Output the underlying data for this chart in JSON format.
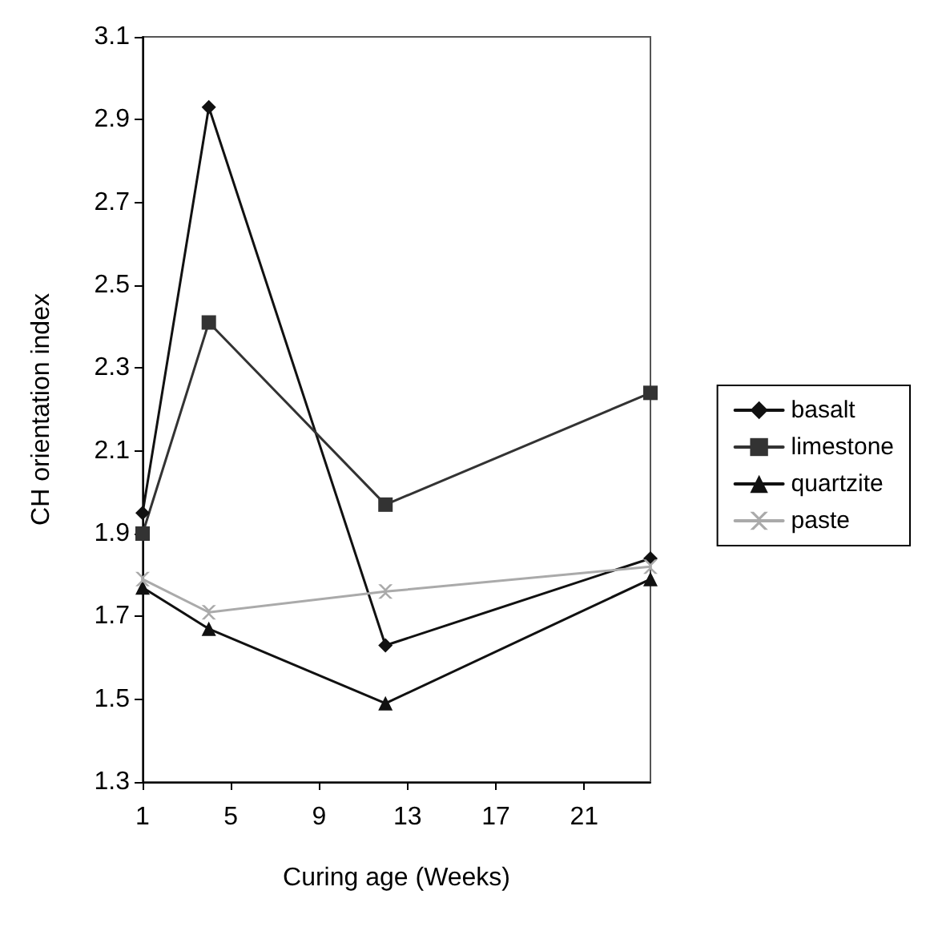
{
  "chart_data": {
    "type": "line",
    "xlabel": "Curing age (Weeks)",
    "ylabel": "CH orientation index",
    "xlim": [
      1,
      24
    ],
    "xticks": [
      1,
      5,
      9,
      13,
      17,
      21
    ],
    "ylim": [
      1.3,
      3.1
    ],
    "yticks": [
      1.3,
      1.5,
      1.7,
      1.9,
      2.1,
      2.3,
      2.5,
      2.7,
      2.9,
      3.1
    ],
    "grid": false,
    "legend": "right",
    "x": [
      1,
      4,
      12,
      24
    ],
    "series": [
      {
        "name": "basalt",
        "color": "#111111",
        "marker": "diamond",
        "values": [
          1.95,
          2.93,
          1.63,
          1.84
        ]
      },
      {
        "name": "limestone",
        "color": "#333333",
        "marker": "square",
        "values": [
          1.9,
          2.41,
          1.97,
          2.24
        ]
      },
      {
        "name": "quartzite",
        "color": "#111111",
        "marker": "triangle",
        "values": [
          1.77,
          1.67,
          1.49,
          1.79
        ]
      },
      {
        "name": "paste",
        "color": "#aaaaaa",
        "marker": "cross",
        "values": [
          1.79,
          1.71,
          1.76,
          1.82
        ]
      }
    ]
  }
}
